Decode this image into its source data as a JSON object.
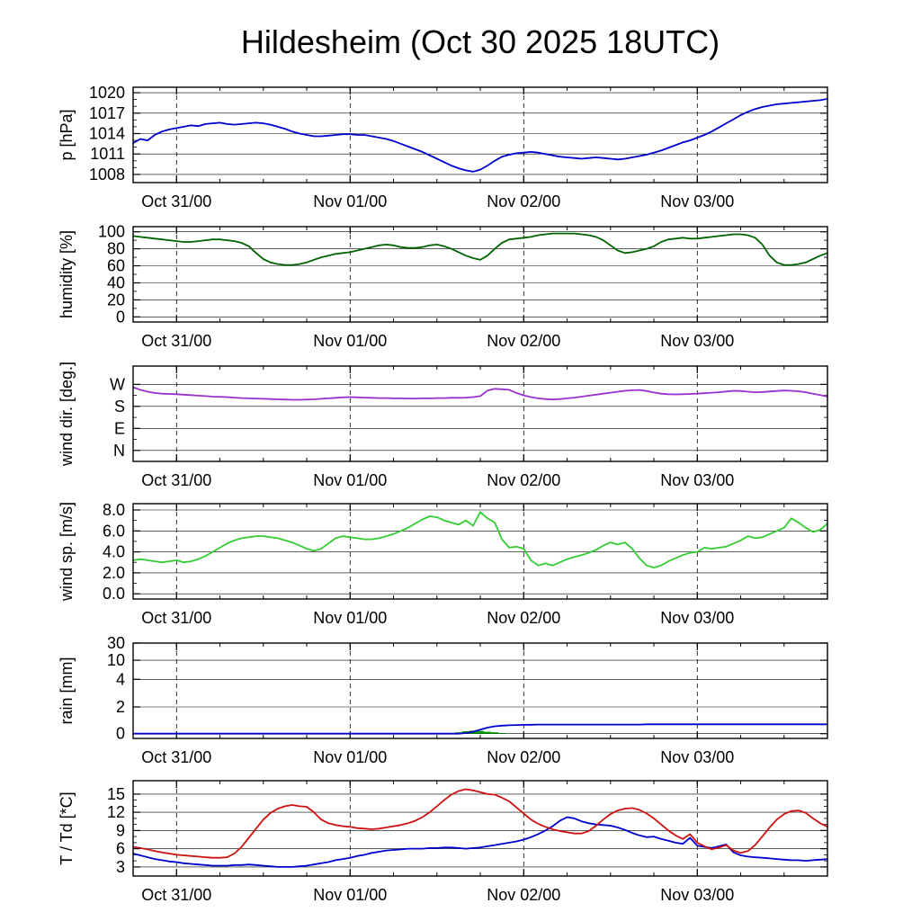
{
  "chart_data": {
    "type": "line",
    "title": "Hildesheim (Oct 30 2025 18UTC)",
    "station": "Hildesheim",
    "run_label": "Oct 30 2025 18UTC",
    "x_range_hours": [
      0,
      96
    ],
    "x_step_hours": 1,
    "x_minor_step_hours": 6,
    "x_major_ticks": [
      {
        "hour": 6,
        "label": "Oct 31/00"
      },
      {
        "hour": 30,
        "label": "Nov 01/00"
      },
      {
        "hour": 54,
        "label": "Nov 02/00"
      },
      {
        "hour": 78,
        "label": "Nov 03/00"
      }
    ],
    "panels": [
      {
        "id": "pressure",
        "ylabel": "p [hPa]",
        "ytick_values": [
          1008,
          1011,
          1014,
          1017,
          1020
        ],
        "ytick_labels": [
          "1008",
          "1011",
          "1014",
          "1017",
          "1020"
        ],
        "ylim": [
          1006.8,
          1020.8
        ],
        "yminor_per_major": 3,
        "series": [
          {
            "name": "pressure",
            "style": "line",
            "color": "#0000cc",
            "values": [
              1012.6,
              1013.2,
              1013.0,
              1013.8,
              1014.3,
              1014.6,
              1014.8,
              1015.0,
              1015.2,
              1015.1,
              1015.4,
              1015.5,
              1015.6,
              1015.4,
              1015.3,
              1015.4,
              1015.5,
              1015.6,
              1015.5,
              1015.3,
              1015.0,
              1014.7,
              1014.3,
              1014.0,
              1013.8,
              1013.6,
              1013.6,
              1013.7,
              1013.8,
              1013.9,
              1013.9,
              1013.8,
              1013.8,
              1013.6,
              1013.4,
              1013.2,
              1012.9,
              1012.5,
              1012.1,
              1011.7,
              1011.3,
              1010.8,
              1010.3,
              1009.8,
              1009.3,
              1008.9,
              1008.6,
              1008.4,
              1008.7,
              1009.3,
              1010.0,
              1010.6,
              1010.9,
              1011.1,
              1011.2,
              1011.3,
              1011.2,
              1011.0,
              1010.8,
              1010.6,
              1010.5,
              1010.4,
              1010.3,
              1010.4,
              1010.5,
              1010.4,
              1010.3,
              1010.2,
              1010.3,
              1010.5,
              1010.7,
              1010.9,
              1011.2,
              1011.5,
              1011.9,
              1012.3,
              1012.7,
              1013.0,
              1013.4,
              1013.8,
              1014.3,
              1014.9,
              1015.5,
              1016.1,
              1016.7,
              1017.2,
              1017.6,
              1017.9,
              1018.1,
              1018.3,
              1018.4,
              1018.5,
              1018.6,
              1018.7,
              1018.8,
              1018.9,
              1019.1
            ]
          }
        ]
      },
      {
        "id": "humidity",
        "ylabel": "humidity [%]",
        "ytick_values": [
          0,
          20,
          40,
          60,
          80,
          100
        ],
        "ytick_labels": [
          "0",
          "20",
          "40",
          "60",
          "80",
          "100"
        ],
        "ylim": [
          -6,
          106
        ],
        "yminor_per_major": 2,
        "series": [
          {
            "name": "relative_humidity",
            "style": "line",
            "color": "#006400",
            "values": [
              95,
              94,
              93,
              92,
              91,
              90,
              89,
              88,
              88,
              89,
              90,
              91,
              91,
              90,
              89,
              87,
              83,
              75,
              68,
              64,
              62,
              61,
              61,
              62,
              64,
              67,
              70,
              72,
              74,
              75,
              76,
              78,
              80,
              82,
              84,
              85,
              84,
              82,
              81,
              81,
              82,
              84,
              85,
              83,
              80,
              76,
              72,
              69,
              67,
              72,
              80,
              87,
              91,
              92,
              93,
              94,
              96,
              97,
              98,
              98,
              98,
              98,
              97,
              96,
              94,
              90,
              84,
              78,
              75,
              76,
              78,
              80,
              83,
              88,
              91,
              92,
              93,
              92,
              92,
              93,
              94,
              95,
              96,
              97,
              97,
              96,
              93,
              85,
              72,
              64,
              61,
              61,
              62,
              64,
              68,
              72,
              75
            ]
          }
        ]
      },
      {
        "id": "wind-direction",
        "ylabel": "wind dir. [deg.]",
        "ytick_values": [
          0,
          90,
          180,
          270
        ],
        "ytick_labels": [
          "N",
          "E",
          "S",
          "W"
        ],
        "ylim": [
          -45,
          345
        ],
        "yminor_per_major": 2,
        "series": [
          {
            "name": "wind_direction",
            "style": "line",
            "color": "#9932cc",
            "values": [
              258,
              248,
              240,
              235,
              232,
              231,
              230,
              228,
              226,
              224,
              222,
              220,
              219,
              218,
              216,
              214,
              213,
              212,
              211,
              210,
              209,
              208,
              207,
              207,
              208,
              209,
              211,
              213,
              215,
              217,
              218,
              217,
              216,
              215,
              214,
              214,
              213,
              213,
              212,
              212,
              213,
              213,
              214,
              214,
              215,
              215,
              216,
              218,
              222,
              245,
              252,
              250,
              248,
              235,
              225,
              218,
              213,
              210,
              208,
              210,
              213,
              216,
              220,
              224,
              228,
              232,
              236,
              240,
              244,
              246,
              247,
              243,
              237,
              232,
              230,
              229,
              230,
              231,
              232,
              234,
              236,
              238,
              241,
              244,
              243,
              240,
              238,
              239,
              241,
              243,
              245,
              244,
              242,
              238,
              232,
              226,
              220
            ]
          }
        ]
      },
      {
        "id": "wind-speed",
        "ylabel": "wind sp. [m/s]",
        "ytick_values": [
          0,
          2,
          4,
          6,
          8
        ],
        "ytick_labels": [
          "0.0",
          "2.0",
          "4.0",
          "6.0",
          "8.0"
        ],
        "ylim": [
          -0.5,
          8.6
        ],
        "yminor_per_major": 2,
        "series": [
          {
            "name": "wind_speed",
            "style": "line",
            "color": "#33cc33",
            "values": [
              3.2,
              3.3,
              3.2,
              3.1,
              3.0,
              3.1,
              3.2,
              3.0,
              3.1,
              3.3,
              3.6,
              4.0,
              4.4,
              4.8,
              5.1,
              5.3,
              5.4,
              5.5,
              5.5,
              5.4,
              5.3,
              5.1,
              4.9,
              4.6,
              4.3,
              4.1,
              4.3,
              4.8,
              5.3,
              5.5,
              5.4,
              5.3,
              5.2,
              5.2,
              5.3,
              5.5,
              5.7,
              6.0,
              6.3,
              6.7,
              7.1,
              7.4,
              7.3,
              7.0,
              6.8,
              6.6,
              7.0,
              6.5,
              7.8,
              7.2,
              6.8,
              5.2,
              4.4,
              4.5,
              4.3,
              3.2,
              2.7,
              2.9,
              2.7,
              3.0,
              3.3,
              3.5,
              3.7,
              3.9,
              4.2,
              4.6,
              4.9,
              4.7,
              4.9,
              4.3,
              3.4,
              2.7,
              2.5,
              2.7,
              3.1,
              3.4,
              3.7,
              3.9,
              4.0,
              4.4,
              4.3,
              4.4,
              4.5,
              4.8,
              5.1,
              5.5,
              5.3,
              5.4,
              5.7,
              6.0,
              6.3,
              7.2,
              6.8,
              6.3,
              5.9,
              6.1,
              6.7
            ]
          }
        ]
      },
      {
        "id": "rain",
        "ylabel": "rain [mm]",
        "ytick_values": [
          0,
          2,
          4,
          10,
          30
        ],
        "ytick_labels": [
          "0",
          "2",
          "4",
          "10",
          "30"
        ],
        "scale_anchors": [
          [
            0,
            0.05
          ],
          [
            2,
            0.33
          ],
          [
            4,
            0.62
          ],
          [
            10,
            0.82
          ],
          [
            30,
            1.0
          ]
        ],
        "yminor_per_major": 0,
        "series": [
          {
            "name": "rain_rate",
            "style": "bars",
            "color": "#00a000",
            "values": [
              0,
              0,
              0,
              0,
              0,
              0,
              0,
              0,
              0,
              0,
              0,
              0,
              0,
              0,
              0,
              0,
              0,
              0,
              0,
              0,
              0,
              0,
              0,
              0,
              0,
              0,
              0,
              0,
              0,
              0,
              0,
              0,
              0,
              0,
              0,
              0,
              0,
              0,
              0,
              0,
              0,
              0,
              0,
              0,
              0.05,
              0.1,
              0.18,
              0.22,
              0.2,
              0.15,
              0.1,
              0.05,
              0.02,
              0,
              0,
              0,
              0,
              0,
              0,
              0,
              0,
              0,
              0,
              0,
              0,
              0,
              0,
              0,
              0,
              0,
              0,
              0,
              0,
              0,
              0,
              0,
              0,
              0,
              0,
              0,
              0,
              0,
              0,
              0,
              0,
              0,
              0,
              0,
              0,
              0,
              0,
              0,
              0,
              0,
              0,
              0,
              0
            ]
          },
          {
            "name": "rain_accumulated",
            "style": "line",
            "color": "#0000cc",
            "values": [
              0,
              0,
              0,
              0,
              0,
              0,
              0,
              0,
              0,
              0,
              0,
              0,
              0,
              0,
              0,
              0,
              0,
              0,
              0,
              0,
              0,
              0,
              0,
              0,
              0,
              0,
              0,
              0,
              0,
              0,
              0,
              0,
              0,
              0,
              0,
              0,
              0,
              0,
              0,
              0,
              0,
              0,
              0,
              0,
              0,
              0,
              0.05,
              0.15,
              0.3,
              0.45,
              0.55,
              0.6,
              0.63,
              0.65,
              0.66,
              0.67,
              0.68,
              0.68,
              0.68,
              0.68,
              0.68,
              0.68,
              0.68,
              0.68,
              0.68,
              0.68,
              0.68,
              0.68,
              0.68,
              0.68,
              0.68,
              0.7,
              0.7,
              0.7,
              0.7,
              0.7,
              0.7,
              0.7,
              0.7,
              0.7,
              0.7,
              0.7,
              0.7,
              0.7,
              0.7,
              0.7,
              0.7,
              0.7,
              0.7,
              0.7,
              0.7,
              0.7,
              0.7,
              0.7,
              0.7,
              0.7,
              0.7
            ]
          }
        ]
      },
      {
        "id": "temperature",
        "ylabel": "T / Td [*C]",
        "ytick_values": [
          3,
          6,
          9,
          12,
          15
        ],
        "ytick_labels": [
          "3",
          "6",
          "9",
          "12",
          "15"
        ],
        "ylim": [
          1.5,
          17.2
        ],
        "yminor_per_major": 3,
        "series": [
          {
            "name": "dew_point",
            "style": "line",
            "color": "#0000cc",
            "values": [
              5.2,
              4.9,
              4.6,
              4.3,
              4.1,
              3.9,
              3.8,
              3.6,
              3.5,
              3.4,
              3.3,
              3.2,
              3.2,
              3.2,
              3.3,
              3.3,
              3.4,
              3.3,
              3.2,
              3.1,
              3.0,
              3.0,
              3.0,
              3.1,
              3.2,
              3.4,
              3.6,
              3.8,
              4.1,
              4.3,
              4.5,
              4.8,
              5.0,
              5.3,
              5.5,
              5.7,
              5.8,
              5.9,
              6.0,
              6.0,
              6.0,
              6.1,
              6.1,
              6.2,
              6.2,
              6.1,
              6.0,
              6.1,
              6.2,
              6.4,
              6.6,
              6.8,
              7.0,
              7.2,
              7.5,
              7.9,
              8.4,
              9.0,
              9.7,
              10.6,
              11.2,
              11.0,
              10.5,
              10.2,
              10.0,
              9.9,
              9.8,
              9.5,
              9.1,
              8.6,
              8.2,
              7.9,
              8.0,
              7.6,
              7.3,
              7.0,
              6.8,
              7.8,
              6.5,
              6.3,
              6.1,
              6.4,
              6.7,
              5.4,
              4.9,
              4.7,
              4.6,
              4.5,
              4.4,
              4.3,
              4.2,
              4.1,
              4.1,
              4.0,
              4.1,
              4.2,
              4.3
            ]
          },
          {
            "name": "temperature",
            "style": "line",
            "color": "#cc1111",
            "values": [
              6.3,
              6.1,
              5.9,
              5.6,
              5.4,
              5.2,
              5.0,
              4.9,
              4.8,
              4.7,
              4.6,
              4.5,
              4.5,
              4.6,
              5.2,
              6.3,
              7.8,
              9.3,
              10.8,
              11.9,
              12.6,
              13.0,
              13.2,
              13.0,
              12.9,
              12.0,
              10.8,
              10.2,
              9.9,
              9.7,
              9.6,
              9.4,
              9.3,
              9.2,
              9.3,
              9.5,
              9.7,
              9.9,
              10.2,
              10.6,
              11.2,
              12.0,
              13.0,
              14.0,
              14.9,
              15.5,
              15.8,
              15.6,
              15.3,
              15.0,
              14.9,
              14.4,
              13.8,
              12.8,
              11.8,
              10.8,
              10.1,
              9.6,
              9.2,
              8.9,
              8.7,
              8.5,
              8.5,
              8.9,
              9.8,
              10.8,
              11.7,
              12.3,
              12.6,
              12.7,
              12.4,
              11.8,
              11.0,
              10.0,
              9.0,
              8.2,
              7.6,
              8.4,
              7.0,
              6.4,
              5.9,
              6.2,
              6.6,
              5.7,
              5.3,
              5.6,
              6.6,
              8.0,
              9.5,
              10.8,
              11.7,
              12.2,
              12.3,
              11.9,
              11.0,
              10.2,
              9.6
            ]
          }
        ]
      }
    ]
  }
}
